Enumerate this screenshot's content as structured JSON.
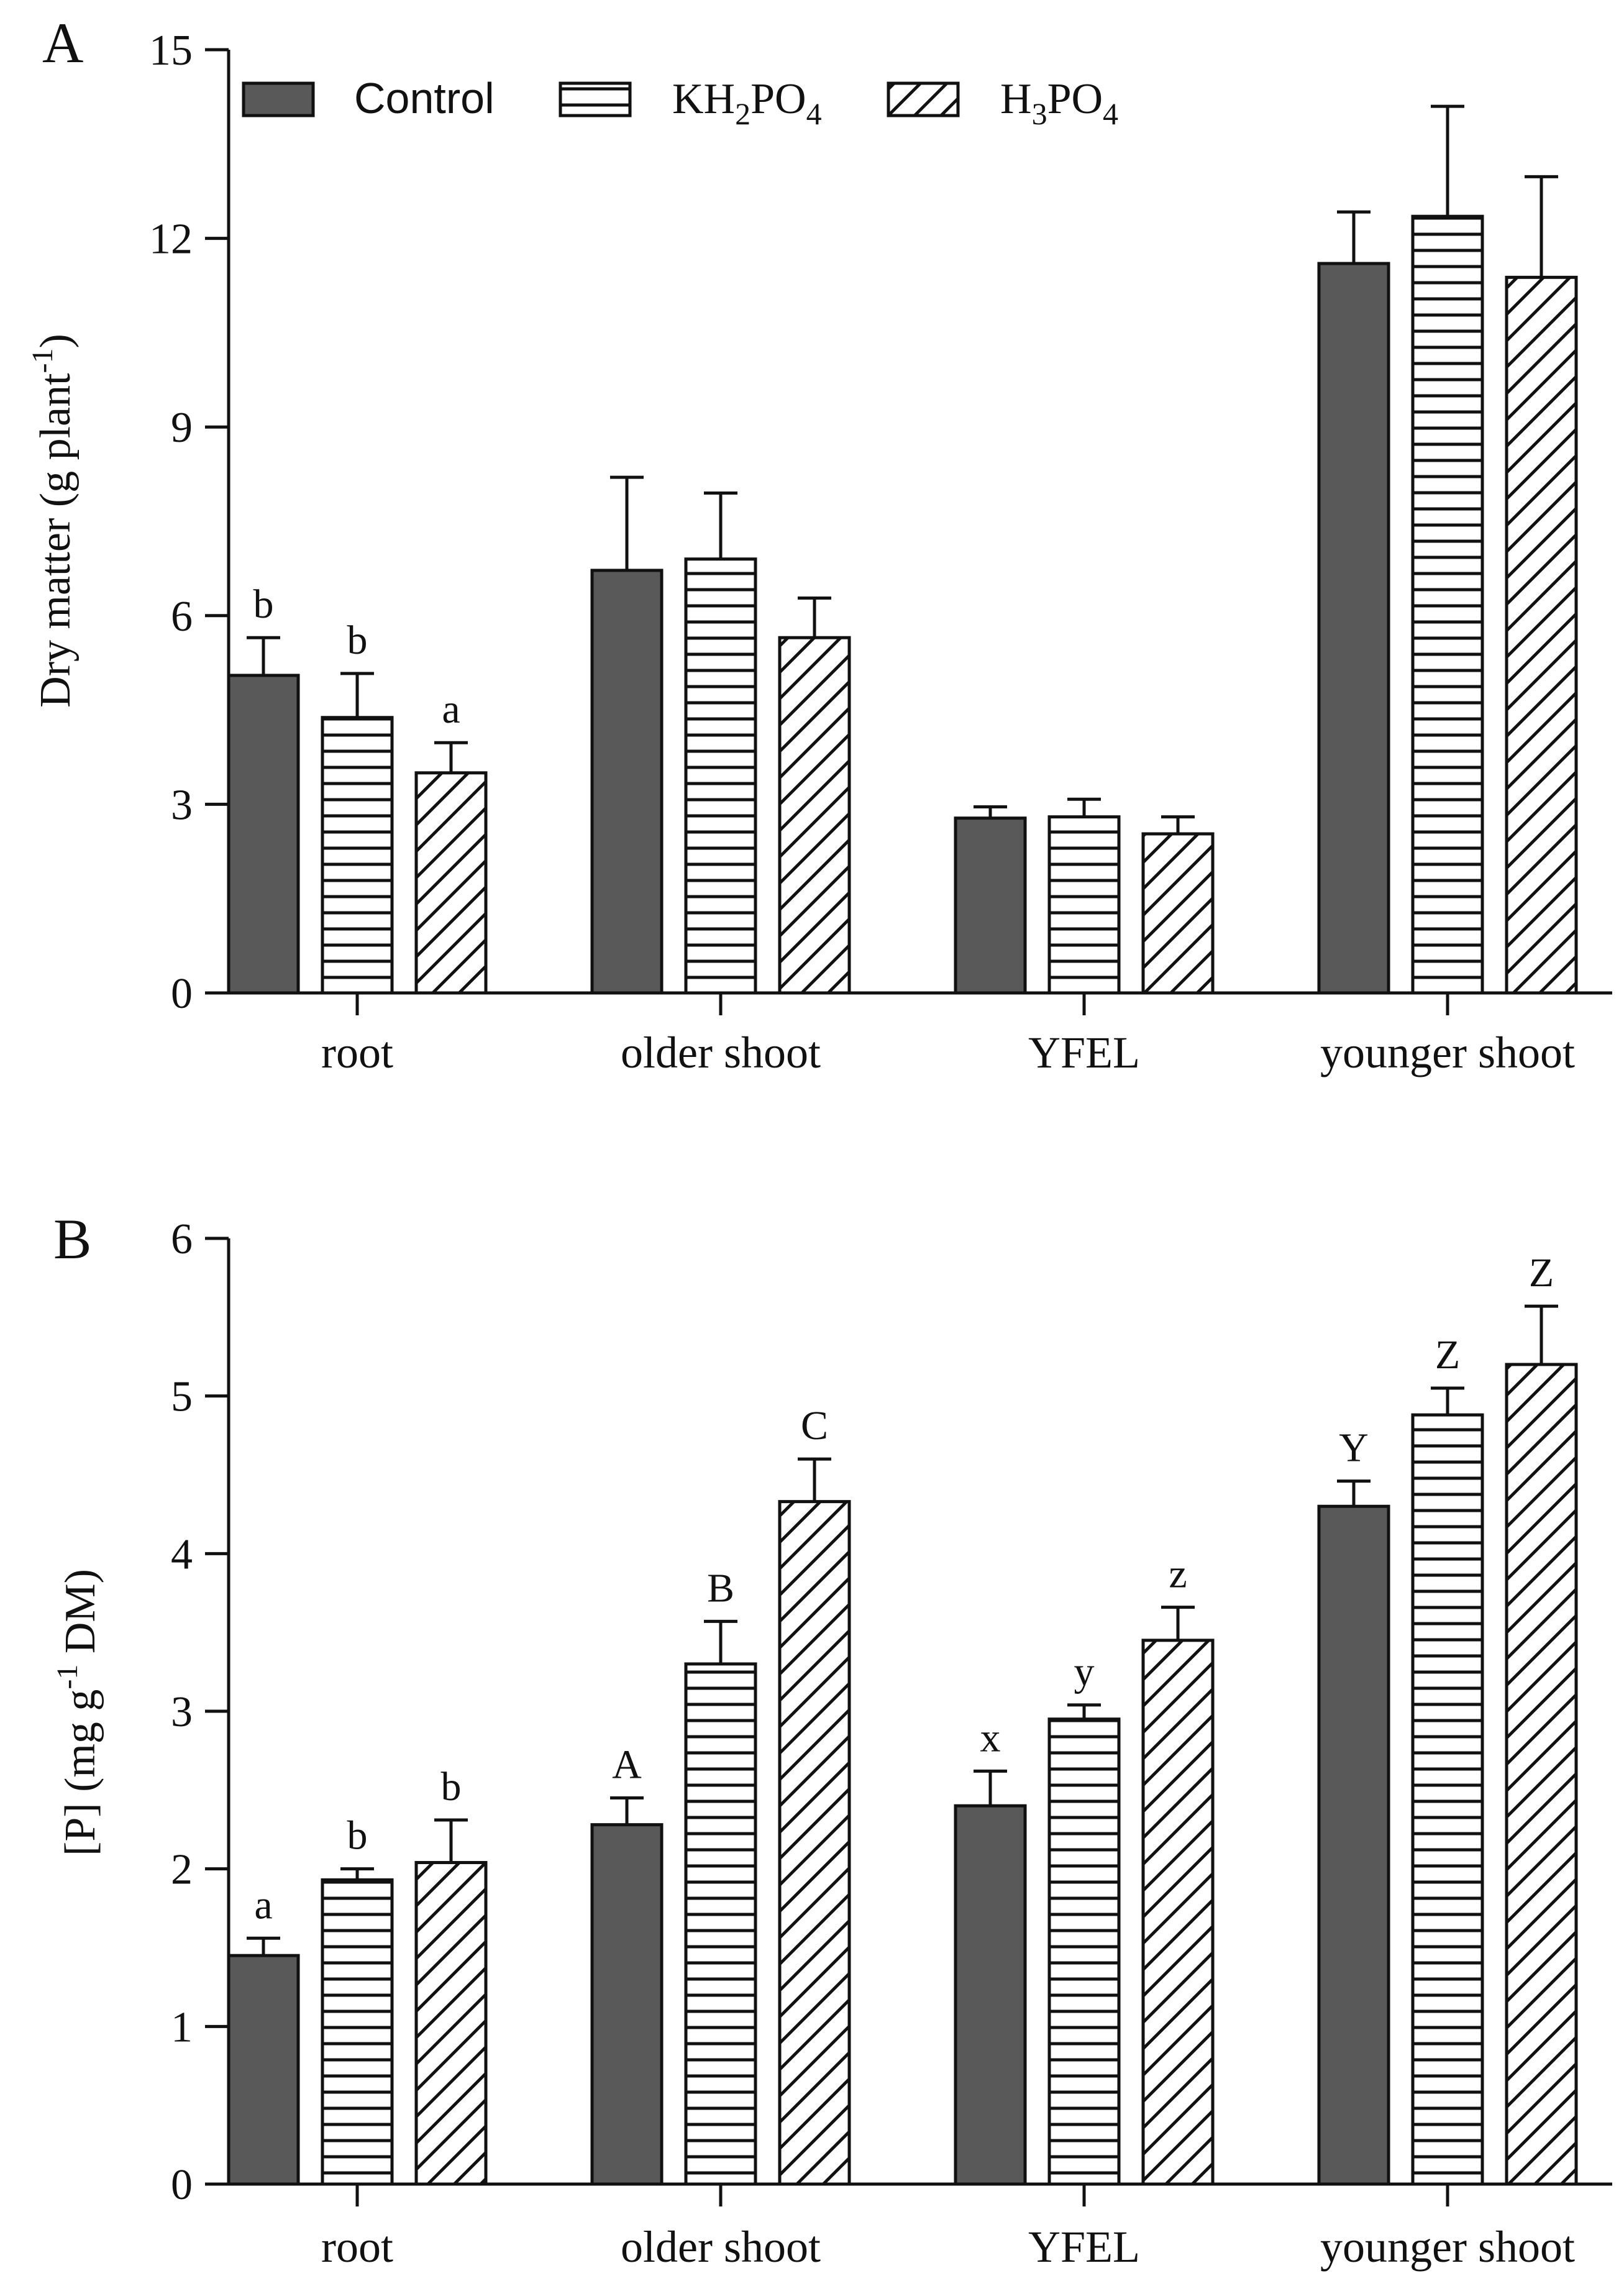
{
  "legend": {
    "items": [
      {
        "label": "Control",
        "pattern": "solid"
      },
      {
        "label": "KH",
        "sub1": "2",
        "mid": "PO",
        "sub2": "4",
        "pattern": "hlines"
      },
      {
        "label": "H",
        "sub1": "3",
        "mid": "PO",
        "sub2": "4",
        "pattern": "diag"
      }
    ]
  },
  "chart_data": [
    {
      "type": "bar",
      "panel_label": "A",
      "ylabel": "Dry matter (g plant",
      "ylabel_sup": "-1",
      "ylabel_end": ")",
      "categories": [
        "root",
        "older shoot",
        "YFEL",
        "younger shoot"
      ],
      "ylim": [
        0,
        15
      ],
      "yticks": [
        0,
        3,
        6,
        9,
        12,
        15
      ],
      "series": [
        {
          "name": "Control",
          "values": [
            5.05,
            6.72,
            2.78,
            11.6
          ],
          "errors": [
            0.6,
            1.48,
            0.18,
            0.82
          ],
          "letters": [
            "b",
            "",
            "",
            ""
          ]
        },
        {
          "name": "KH2PO4",
          "values": [
            4.38,
            6.9,
            2.8,
            12.35
          ],
          "errors": [
            0.7,
            1.05,
            0.28,
            1.75
          ],
          "letters": [
            "b",
            "",
            "",
            ""
          ]
        },
        {
          "name": "H3PO4",
          "values": [
            3.5,
            5.65,
            2.53,
            11.38
          ],
          "errors": [
            0.48,
            0.63,
            0.27,
            1.6
          ],
          "letters": [
            "a",
            "",
            "",
            ""
          ]
        }
      ]
    },
    {
      "type": "bar",
      "panel_label": "B",
      "ylabel": "[P] (mg g",
      "ylabel_sup": "-1",
      "ylabel_end": " DM)",
      "categories": [
        "root",
        "older shoot",
        "YFEL",
        "younger shoot"
      ],
      "ylim": [
        0,
        6
      ],
      "yticks": [
        0,
        1,
        2,
        3,
        4,
        5,
        6
      ],
      "series": [
        {
          "name": "Control",
          "values": [
            1.45,
            2.28,
            2.4,
            4.3
          ],
          "errors": [
            0.11,
            0.17,
            0.22,
            0.16
          ],
          "letters": [
            "a",
            "A",
            "x",
            "Y"
          ]
        },
        {
          "name": "KH2PO4",
          "values": [
            1.93,
            3.3,
            2.95,
            4.88
          ],
          "errors": [
            0.07,
            0.27,
            0.09,
            0.17
          ],
          "letters": [
            "b",
            "B",
            "y",
            "Z"
          ]
        },
        {
          "name": "H3PO4",
          "values": [
            2.04,
            4.33,
            3.45,
            5.2
          ],
          "errors": [
            0.27,
            0.27,
            0.21,
            0.37
          ],
          "letters": [
            "b",
            "C",
            "z",
            "Z"
          ]
        }
      ]
    }
  ]
}
